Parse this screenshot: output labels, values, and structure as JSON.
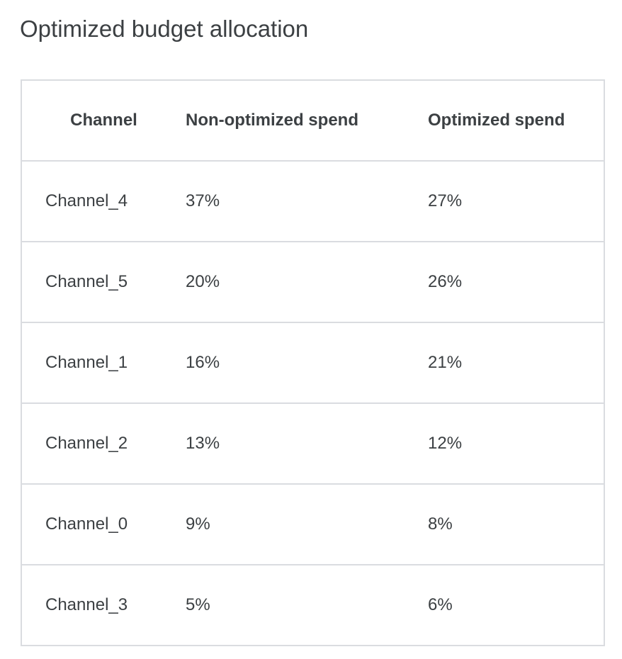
{
  "title": "Optimized budget allocation",
  "columns": [
    "Channel",
    "Non-optimized spend",
    "Optimized spend"
  ],
  "rows": [
    [
      "Channel_4",
      "37%",
      "27%"
    ],
    [
      "Channel_5",
      "20%",
      "26%"
    ],
    [
      "Channel_1",
      "16%",
      "21%"
    ],
    [
      "Channel_2",
      "13%",
      "12%"
    ],
    [
      "Channel_0",
      "9%",
      "8%"
    ],
    [
      "Channel_3",
      "5%",
      "6%"
    ]
  ],
  "colors": {
    "text": "#3c4043",
    "border": "#dadce0"
  }
}
